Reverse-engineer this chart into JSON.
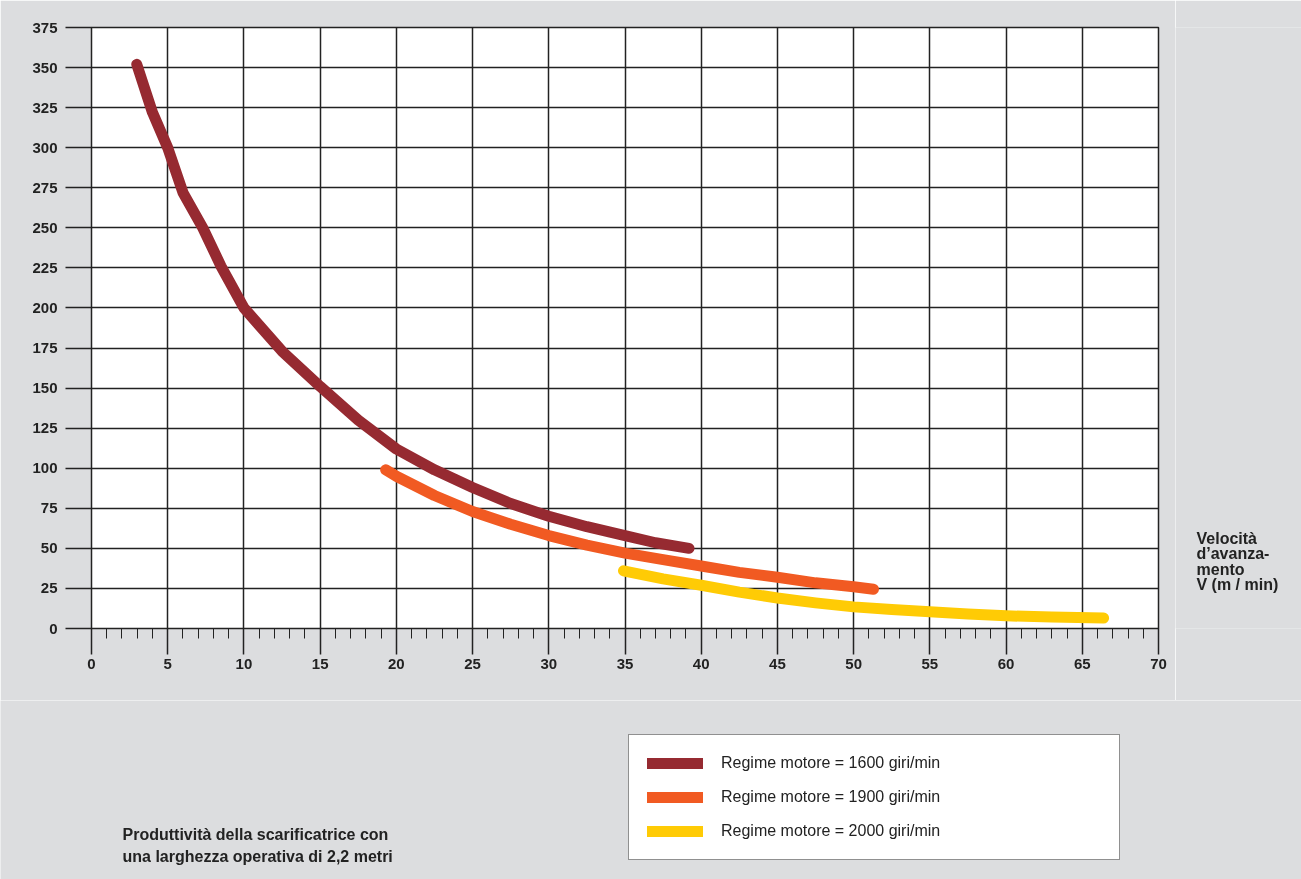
{
  "chart_data": {
    "type": "line",
    "xlabel": "Velocità\nd’avanza-\nmento\nV (m / min)",
    "annotations": [
      "Produttività della scarificatrice con una larghezza operativa di 2,2 metri"
    ],
    "xlim": [
      0,
      70
    ],
    "xticks": [
      0,
      5,
      10,
      15,
      20,
      25,
      30,
      35,
      40,
      45,
      50,
      55,
      60,
      65,
      70
    ],
    "ylim": [
      0,
      375
    ],
    "yticks": [
      0,
      25,
      50,
      75,
      100,
      125,
      150,
      175,
      200,
      225,
      250,
      275,
      300,
      325,
      350,
      375
    ],
    "grid": true,
    "legend": "bottom",
    "marker": "none",
    "line_style": "solid",
    "series": [
      {
        "name": "Regime motore = 1600 giri/min",
        "color": "#962a31",
        "x": [
          2.97,
          4,
          5,
          6,
          7.3,
          8.5,
          10,
          12.5,
          15,
          17.5,
          20,
          22.5,
          25,
          27.5,
          30,
          32.5,
          35,
          37,
          39.2
        ],
        "values": [
          352,
          322,
          300,
          272,
          250,
          226,
          200,
          173,
          151,
          130,
          112,
          99,
          88,
          78,
          70,
          63.5,
          58,
          53.5,
          50
        ]
      },
      {
        "name": "Regime motore = 1900 giri/min",
        "color": "#f15a22",
        "x": [
          19.3,
          20,
          22.5,
          25,
          27.5,
          30,
          32.5,
          35,
          37.5,
          40,
          42.5,
          45,
          47.5,
          50,
          51.3
        ],
        "values": [
          99,
          95,
          83,
          73,
          65,
          58,
          52,
          47,
          43,
          39,
          35,
          32,
          28.5,
          26,
          24.5
        ]
      },
      {
        "name": "Regime motore = 2000 giri/min",
        "color": "#ffcb05",
        "x": [
          34.9,
          37.5,
          40,
          42.5,
          45,
          47.5,
          50,
          52.5,
          55,
          57.5,
          60,
          63,
          66.4
        ],
        "values": [
          36,
          31,
          27,
          22.7,
          19,
          16,
          13.5,
          11.8,
          10.4,
          9,
          7.9,
          7.2,
          6.5
        ]
      }
    ]
  }
}
